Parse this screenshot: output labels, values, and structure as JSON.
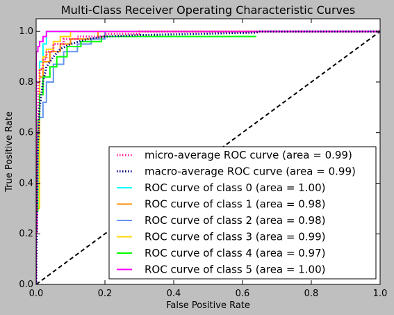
{
  "chart_data": {
    "type": "line",
    "title": "Multi-Class Receiver Operating Characteristic Curves",
    "xlabel": "False Positive Rate",
    "ylabel": "True Positive Rate",
    "xlim": [
      0.0,
      1.0
    ],
    "ylim": [
      0.0,
      1.05
    ],
    "xticks": [
      0.0,
      0.2,
      0.4,
      0.6,
      0.8,
      1.0
    ],
    "yticks": [
      0.0,
      0.2,
      0.4,
      0.6,
      0.8,
      1.0
    ],
    "xtick_labels": [
      "0.0",
      "0.2",
      "0.4",
      "0.6",
      "0.8",
      "1.0"
    ],
    "ytick_labels": [
      "0.0",
      "0.2",
      "0.4",
      "0.6",
      "0.8",
      "1.0"
    ],
    "grid": false,
    "legend_position": "lower-right",
    "diagonal": {
      "x": [
        0,
        1
      ],
      "y": [
        0,
        1
      ],
      "color": "#000000",
      "style": "dashed"
    },
    "series": [
      {
        "name": "micro-average ROC curve (area = 0.99)",
        "color": "#ff1493",
        "style": "dotted",
        "x": [
          0,
          0,
          0.003,
          0.003,
          0.006,
          0.006,
          0.01,
          0.01,
          0.02,
          0.02,
          0.03,
          0.03,
          0.05,
          0.05,
          0.08,
          0.08,
          0.12,
          0.12,
          0.2,
          0.2,
          0.3,
          0.3,
          1.0
        ],
        "y": [
          0,
          0.2,
          0.2,
          0.6,
          0.6,
          0.8,
          0.8,
          0.85,
          0.85,
          0.89,
          0.89,
          0.92,
          0.92,
          0.95,
          0.95,
          0.97,
          0.97,
          0.98,
          0.98,
          0.99,
          0.99,
          1.0,
          1.0
        ]
      },
      {
        "name": "macro-average ROC curve (area = 0.99)",
        "color": "#000080",
        "style": "dotted",
        "x": [
          0,
          0.005,
          0.01,
          0.02,
          0.03,
          0.05,
          0.07,
          0.1,
          0.15,
          0.2,
          0.3,
          0.45,
          0.64,
          0.65,
          1.0
        ],
        "y": [
          0,
          0.55,
          0.7,
          0.8,
          0.86,
          0.9,
          0.93,
          0.95,
          0.97,
          0.98,
          0.985,
          0.99,
          0.995,
          1.0,
          1.0
        ]
      },
      {
        "name": "ROC curve of class 0 (area = 1.00)",
        "color": "#00ffff",
        "style": "solid",
        "x": [
          0,
          0,
          0.01,
          0.01,
          0.02,
          0.02,
          0.03,
          0.03,
          1.0
        ],
        "y": [
          0,
          0.6,
          0.6,
          0.88,
          0.88,
          0.95,
          0.95,
          1.0,
          1.0
        ]
      },
      {
        "name": "ROC curve of class 1 (area = 0.98)",
        "color": "#ff8c00",
        "style": "solid",
        "x": [
          0,
          0,
          0.01,
          0.01,
          0.02,
          0.02,
          0.04,
          0.04,
          0.07,
          0.07,
          0.1,
          0.1,
          0.18,
          0.18,
          1.0
        ],
        "y": [
          0,
          0.3,
          0.3,
          0.82,
          0.82,
          0.88,
          0.88,
          0.92,
          0.92,
          0.95,
          0.95,
          0.97,
          0.97,
          1.0,
          1.0
        ]
      },
      {
        "name": "ROC curve of class 2 (area = 0.98)",
        "color": "#6495ed",
        "style": "solid",
        "x": [
          0,
          0,
          0.01,
          0.01,
          0.02,
          0.02,
          0.03,
          0.03,
          0.05,
          0.05,
          0.08,
          0.08,
          0.12,
          0.12,
          0.16,
          0.16,
          0.2,
          0.2,
          1.0
        ],
        "y": [
          0,
          0.57,
          0.57,
          0.66,
          0.66,
          0.72,
          0.72,
          0.8,
          0.8,
          0.87,
          0.87,
          0.92,
          0.92,
          0.95,
          0.95,
          0.97,
          0.97,
          1.0,
          1.0
        ]
      },
      {
        "name": "ROC curve of class 3 (area = 0.99)",
        "color": "#ffd700",
        "style": "solid",
        "x": [
          0,
          0,
          0.01,
          0.01,
          0.02,
          0.02,
          0.03,
          0.03,
          0.05,
          0.05,
          0.07,
          0.07,
          0.1,
          0.1,
          1.0
        ],
        "y": [
          0,
          0.3,
          0.3,
          0.85,
          0.85,
          0.9,
          0.9,
          0.93,
          0.93,
          0.96,
          0.96,
          0.98,
          0.98,
          1.0,
          1.0
        ]
      },
      {
        "name": "ROC curve of class 4 (area = 0.97)",
        "color": "#00ff00",
        "style": "solid",
        "x": [
          0,
          0,
          0.005,
          0.005,
          0.01,
          0.01,
          0.02,
          0.02,
          0.04,
          0.04,
          0.06,
          0.06,
          0.09,
          0.09,
          0.13,
          0.13,
          0.19,
          0.19,
          0.64
        ],
        "y": [
          0,
          0.29,
          0.29,
          0.65,
          0.65,
          0.75,
          0.75,
          0.82,
          0.82,
          0.86,
          0.86,
          0.9,
          0.9,
          0.94,
          0.94,
          0.96,
          0.96,
          0.98,
          0.98
        ]
      },
      {
        "name": "ROC curve of class 5 (area = 1.00)",
        "color": "#ff00ff",
        "style": "solid",
        "x": [
          0,
          0,
          0.005,
          0.005,
          0.01,
          0.01,
          0.02,
          0.02,
          0.03,
          0.03,
          1.0
        ],
        "y": [
          0,
          0.92,
          0.92,
          0.94,
          0.94,
          0.96,
          0.96,
          0.98,
          0.98,
          1.0,
          1.0
        ]
      }
    ]
  }
}
